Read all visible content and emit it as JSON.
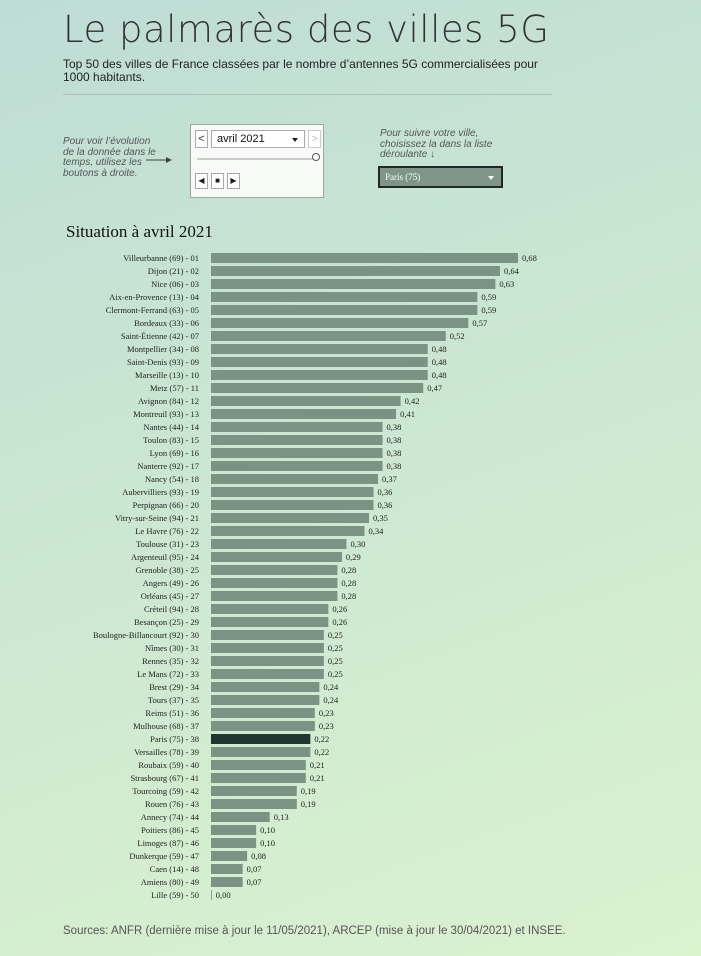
{
  "header": {
    "title": "Le palmarès des villes 5G",
    "subtitle": "Top 50 des villes de France classées par le nombre d’antennes 5G commercialisées pour 1000 habitants."
  },
  "controls": {
    "left_hint": "Pour voir l’évolution de la donnée dans le temps, utilisez les boutons à droite.",
    "right_hint": "Pour suivre votre ville, choisissez la dans la liste déroulante ↓",
    "date_select_value": "avril 2021",
    "prev_symbol": "<",
    "next_symbol": ">",
    "step_back_symbol": "◀",
    "stop_symbol": "■",
    "play_symbol": "▶",
    "city_select_value": "Paris (75)",
    "slider_fraction": 1.0
  },
  "chart_data": {
    "type": "bar",
    "orientation": "horizontal",
    "title": "Situation à avril 2021",
    "xlim": [
      0,
      0.68
    ],
    "highlighted_category": "Paris (75) - 38",
    "colors": {
      "bar": "#7a9385",
      "highlight": "#223631"
    },
    "categories": [
      "Villeurbanne (69) - 01",
      "Dijon (21) - 02",
      "Nice (06) - 03",
      "Aix-en-Provence (13) - 04",
      "Clermont-Ferrand (63) - 05",
      "Bordeaux (33) - 06",
      "Saint-Étienne (42) - 07",
      "Montpellier (34) - 08",
      "Saint-Denis (93) - 09",
      "Marseille (13) - 10",
      "Metz (57) - 11",
      "Avignon (84) - 12",
      "Montreuil (93) - 13",
      "Nantes (44) - 14",
      "Toulon (83) - 15",
      "Lyon (69) - 16",
      "Nanterre (92) - 17",
      "Nancy (54) - 18",
      "Aubervilliers (93) - 19",
      "Perpignan (66) - 20",
      "Vitry-sur-Seine (94) - 21",
      "Le Havre (76) - 22",
      "Toulouse (31) - 23",
      "Argenteuil (95) - 24",
      "Grenoble (38) - 25",
      "Angers (49) - 26",
      "Orléans (45) - 27",
      "Créteil (94) - 28",
      "Besançon (25) - 29",
      "Boulogne-Billancourt (92) - 30",
      "Nîmes (30) - 31",
      "Rennes (35) - 32",
      "Le Mans (72) - 33",
      "Brest (29) - 34",
      "Tours (37) - 35",
      "Reims (51) - 36",
      "Mulhouse (68) - 37",
      "Paris (75) - 38",
      "Versailles (78) - 39",
      "Roubaix (59) - 40",
      "Strasbourg (67) - 41",
      "Tourcoing (59) - 42",
      "Rouen (76) - 43",
      "Annecy (74) - 44",
      "Poitiers (86) - 45",
      "Limoges (87) - 46",
      "Dunkerque (59) - 47",
      "Caen (14) - 48",
      "Amiens (80) - 49",
      "Lille (59) - 50"
    ],
    "values": [
      0.68,
      0.64,
      0.63,
      0.59,
      0.59,
      0.57,
      0.52,
      0.48,
      0.48,
      0.48,
      0.47,
      0.42,
      0.41,
      0.38,
      0.38,
      0.38,
      0.38,
      0.37,
      0.36,
      0.36,
      0.35,
      0.34,
      0.3,
      0.29,
      0.28,
      0.28,
      0.28,
      0.26,
      0.26,
      0.25,
      0.25,
      0.25,
      0.25,
      0.24,
      0.24,
      0.23,
      0.23,
      0.22,
      0.22,
      0.21,
      0.21,
      0.19,
      0.19,
      0.13,
      0.1,
      0.1,
      0.08,
      0.07,
      0.07,
      0.0
    ],
    "value_labels": [
      "0,68",
      "0,64",
      "0,63",
      "0,59",
      "0,59",
      "0,57",
      "0,52",
      "0,48",
      "0,48",
      "0,48",
      "0,47",
      "0,42",
      "0,41",
      "0,38",
      "0,38",
      "0,38",
      "0,38",
      "0,37",
      "0,36",
      "0,36",
      "0,35",
      "0,34",
      "0,30",
      "0,29",
      "0,28",
      "0,28",
      "0,28",
      "0,26",
      "0,26",
      "0,25",
      "0,25",
      "0,25",
      "0,25",
      "0,24",
      "0,24",
      "0,23",
      "0,23",
      "0,22",
      "0,22",
      "0,21",
      "0,21",
      "0,19",
      "0,19",
      "0,13",
      "0,10",
      "0,10",
      "0,08",
      "0,07",
      "0,07",
      "0,00"
    ]
  },
  "footer": {
    "sources": "Sources: ANFR (dernière mise à jour le 11/05/2021), ARCEP (mise à jour le 30/04/2021) et INSEE."
  }
}
